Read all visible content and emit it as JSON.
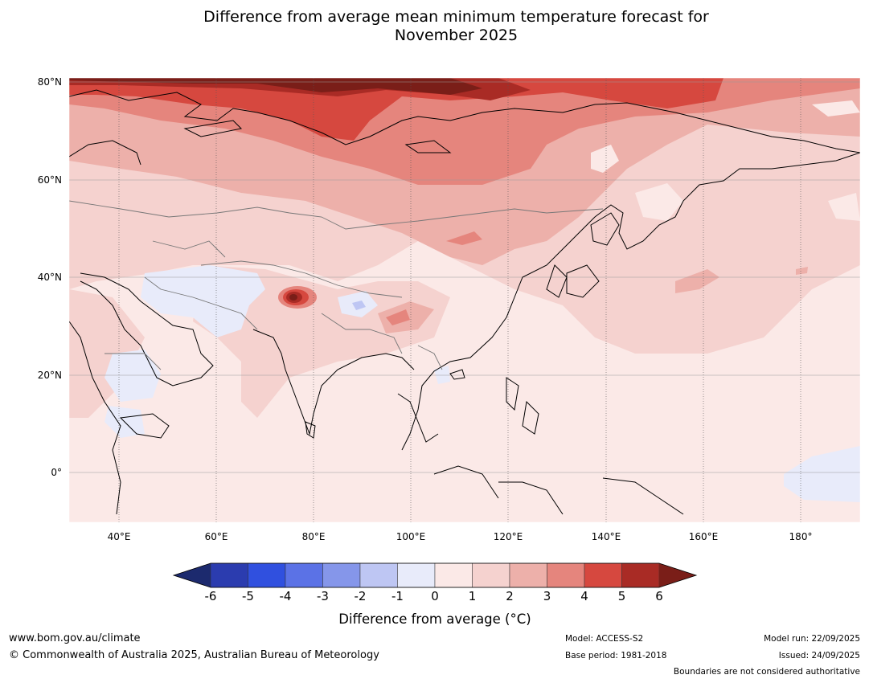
{
  "title": {
    "line1": "Difference from average mean minimum temperature forecast for",
    "line2": "November 2025"
  },
  "map": {
    "lat_labels": [
      "80°N",
      "60°N",
      "40°N",
      "20°N",
      "0°"
    ],
    "lon_labels": [
      "40°E",
      "60°E",
      "80°E",
      "100°E",
      "120°E",
      "140°E",
      "160°E",
      "180°"
    ],
    "extent": {
      "lon": [
        30,
        192
      ],
      "lat": [
        -10,
        81
      ]
    }
  },
  "colorbar": {
    "title": "Difference from average (°C)",
    "ticks": [
      "-6",
      "-5",
      "-4",
      "-3",
      "-2",
      "-1",
      "0",
      "1",
      "2",
      "3",
      "4",
      "5",
      "6"
    ],
    "colors": {
      "below": "#1c2a6e",
      "bins": [
        "#2b3caf",
        "#3050df",
        "#5b72e6",
        "#8596ea",
        "#bec6f3",
        "#e8ebfa",
        "#fbe9e7",
        "#f5d2cf",
        "#edb0aa",
        "#e5857d",
        "#d6483f",
        "#a92b25"
      ],
      "above": "#7a1e18"
    }
  },
  "footer": {
    "website": "www.bom.gov.au/climate",
    "copyright": "© Commonwealth of Australia 2025, Australian Bureau of Meteorology",
    "model": "Model: ACCESS-S2",
    "base_period": "Base period: 1981-2018",
    "model_run": "Model run: 22/09/2025",
    "issued": "Issued: 24/09/2025",
    "disclaimer": "Boundaries are not considered authoritative"
  }
}
